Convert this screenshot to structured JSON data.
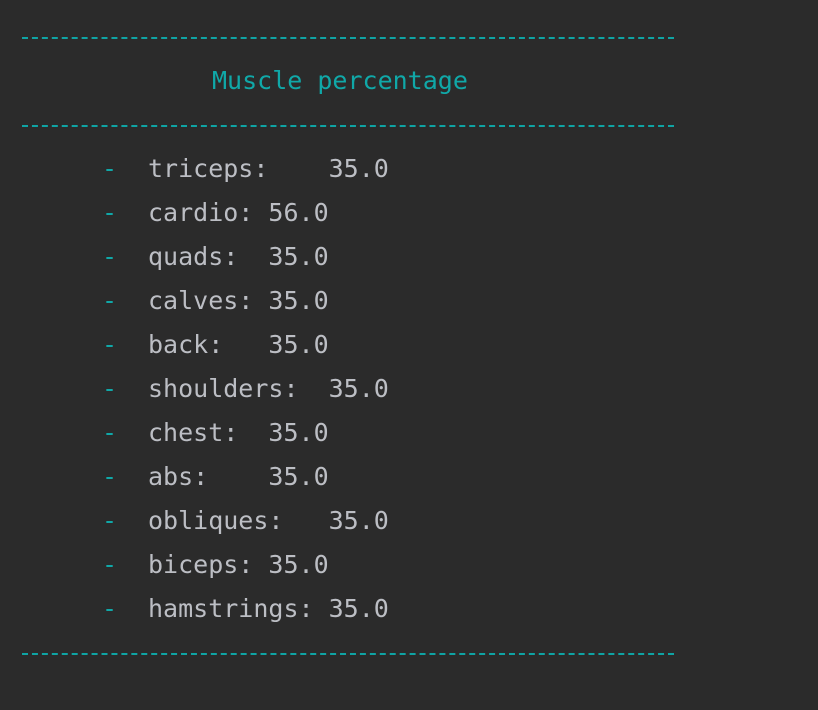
{
  "header": {
    "title": "Muscle percentage"
  },
  "colors": {
    "background": "#2b2b2b",
    "accent": "#10a8a8",
    "text": "#bcbec4"
  },
  "bullet": "-",
  "items": [
    {
      "label": "triceps:    35.0"
    },
    {
      "label": "cardio: 56.0"
    },
    {
      "label": "quads:  35.0"
    },
    {
      "label": "calves: 35.0"
    },
    {
      "label": "back:   35.0"
    },
    {
      "label": "shoulders:  35.0"
    },
    {
      "label": "chest:  35.0"
    },
    {
      "label": "abs:    35.0"
    },
    {
      "label": "obliques:   35.0"
    },
    {
      "label": "biceps: 35.0"
    },
    {
      "label": "hamstrings: 35.0"
    }
  ]
}
